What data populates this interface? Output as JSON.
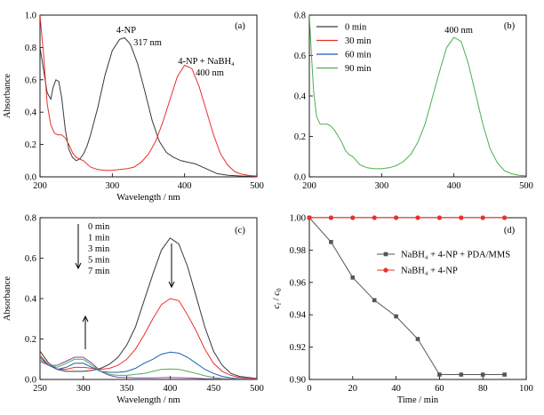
{
  "chart_data": [
    {
      "panel": "(a)",
      "type": "line",
      "xlabel": "Wavelength / nm",
      "ylabel": "Absorbance",
      "xlim": [
        200,
        500
      ],
      "ylim": [
        0,
        1.0
      ],
      "xticks": [
        200,
        300,
        400,
        500
      ],
      "yticks": [
        0.0,
        0.2,
        0.4,
        0.6,
        0.8,
        1.0
      ],
      "annotations": [
        "4-NP",
        "317 nm",
        "4-NP + NaBH₄",
        "400 nm"
      ],
      "series": [
        {
          "color": "#3a3a3a",
          "x": [
            200,
            205,
            210,
            215,
            218,
            222,
            226,
            230,
            235,
            240,
            245,
            250,
            255,
            260,
            265,
            270,
            280,
            290,
            300,
            310,
            317,
            325,
            335,
            345,
            355,
            365,
            375,
            385,
            395,
            405,
            415,
            425,
            435,
            445,
            460,
            480,
            500
          ],
          "y": [
            0.8,
            0.66,
            0.52,
            0.48,
            0.55,
            0.6,
            0.59,
            0.49,
            0.29,
            0.17,
            0.12,
            0.1,
            0.11,
            0.14,
            0.19,
            0.26,
            0.43,
            0.63,
            0.78,
            0.85,
            0.86,
            0.82,
            0.7,
            0.53,
            0.35,
            0.22,
            0.15,
            0.12,
            0.1,
            0.09,
            0.08,
            0.06,
            0.04,
            0.02,
            0.01,
            0.005,
            0.003
          ]
        },
        {
          "color": "#e8312c",
          "x": [
            200,
            205,
            210,
            215,
            220,
            225,
            230,
            235,
            240,
            245,
            250,
            255,
            260,
            270,
            280,
            290,
            300,
            310,
            320,
            330,
            340,
            350,
            360,
            370,
            380,
            390,
            400,
            410,
            420,
            430,
            440,
            450,
            460,
            470,
            480,
            490,
            500
          ],
          "y": [
            1.0,
            0.75,
            0.45,
            0.32,
            0.27,
            0.26,
            0.26,
            0.24,
            0.2,
            0.15,
            0.12,
            0.11,
            0.1,
            0.06,
            0.045,
            0.04,
            0.04,
            0.045,
            0.05,
            0.06,
            0.09,
            0.14,
            0.22,
            0.34,
            0.48,
            0.62,
            0.69,
            0.67,
            0.56,
            0.41,
            0.26,
            0.14,
            0.07,
            0.03,
            0.015,
            0.008,
            0.005
          ]
        }
      ]
    },
    {
      "panel": "(b)",
      "type": "line",
      "xlim": [
        200,
        500
      ],
      "ylim": [
        0,
        0.8
      ],
      "xticks": [
        200,
        300,
        400,
        500
      ],
      "yticks": [
        0.0,
        0.2,
        0.4,
        0.6,
        0.8
      ],
      "annotations": [
        "400 nm"
      ],
      "legend": [
        {
          "name": "0 min",
          "color": "#3a3a3a"
        },
        {
          "name": "30 min",
          "color": "#e8312c"
        },
        {
          "name": "60 min",
          "color": "#1f5fb0"
        },
        {
          "name": "90 min",
          "color": "#4caf50"
        }
      ],
      "series": [
        {
          "color": "#4caf50",
          "x": [
            200,
            203,
            206,
            210,
            215,
            220,
            225,
            230,
            235,
            240,
            245,
            250,
            255,
            260,
            265,
            270,
            280,
            290,
            300,
            310,
            320,
            330,
            340,
            350,
            360,
            370,
            380,
            390,
            400,
            410,
            420,
            430,
            440,
            450,
            460,
            470,
            480,
            490,
            500
          ],
          "y": [
            0.8,
            0.6,
            0.42,
            0.3,
            0.26,
            0.26,
            0.26,
            0.25,
            0.23,
            0.2,
            0.17,
            0.13,
            0.11,
            0.1,
            0.08,
            0.06,
            0.045,
            0.04,
            0.04,
            0.045,
            0.055,
            0.075,
            0.11,
            0.17,
            0.26,
            0.39,
            0.52,
            0.64,
            0.69,
            0.67,
            0.56,
            0.41,
            0.26,
            0.14,
            0.07,
            0.03,
            0.015,
            0.008,
            0.005
          ]
        }
      ]
    },
    {
      "panel": "(c)",
      "type": "line",
      "xlabel": "Wavelength / nm",
      "ylabel": "Absorbance",
      "xlim": [
        250,
        500
      ],
      "ylim": [
        0,
        0.8
      ],
      "xticks": [
        250,
        300,
        350,
        400,
        450,
        500
      ],
      "yticks": [
        0.0,
        0.2,
        0.4,
        0.6,
        0.8
      ],
      "time_labels": [
        "0 min",
        "1 min",
        "3 min",
        "5 min",
        "7 min"
      ],
      "series": [
        {
          "color": "#3a3a3a",
          "x": [
            250,
            260,
            270,
            280,
            290,
            300,
            310,
            320,
            330,
            340,
            350,
            360,
            370,
            380,
            390,
            400,
            410,
            420,
            430,
            440,
            450,
            460,
            470,
            480,
            500
          ],
          "y": [
            0.14,
            0.08,
            0.05,
            0.04,
            0.04,
            0.04,
            0.045,
            0.055,
            0.075,
            0.11,
            0.17,
            0.26,
            0.39,
            0.52,
            0.64,
            0.7,
            0.67,
            0.56,
            0.41,
            0.26,
            0.14,
            0.07,
            0.03,
            0.015,
            0.005
          ]
        },
        {
          "color": "#e8312c",
          "x": [
            250,
            260,
            270,
            280,
            290,
            300,
            310,
            320,
            330,
            340,
            350,
            360,
            370,
            380,
            390,
            400,
            410,
            420,
            430,
            440,
            450,
            460,
            470,
            480,
            500
          ],
          "y": [
            0.12,
            0.07,
            0.05,
            0.05,
            0.06,
            0.06,
            0.055,
            0.05,
            0.055,
            0.07,
            0.1,
            0.15,
            0.22,
            0.3,
            0.37,
            0.4,
            0.39,
            0.32,
            0.24,
            0.15,
            0.08,
            0.04,
            0.02,
            0.01,
            0.005
          ]
        },
        {
          "color": "#1f5fb0",
          "x": [
            250,
            260,
            270,
            280,
            290,
            300,
            310,
            320,
            330,
            340,
            350,
            360,
            370,
            380,
            390,
            400,
            410,
            420,
            430,
            440,
            450,
            460,
            470,
            480,
            500
          ],
          "y": [
            0.11,
            0.07,
            0.05,
            0.06,
            0.08,
            0.08,
            0.06,
            0.04,
            0.035,
            0.035,
            0.04,
            0.055,
            0.08,
            0.1,
            0.125,
            0.135,
            0.13,
            0.11,
            0.08,
            0.05,
            0.03,
            0.015,
            0.008,
            0.004,
            0.002
          ]
        },
        {
          "color": "#4caf50",
          "x": [
            250,
            260,
            270,
            280,
            290,
            300,
            310,
            320,
            330,
            340,
            350,
            360,
            370,
            380,
            390,
            400,
            410,
            420,
            430,
            440,
            450,
            460,
            470,
            480,
            500
          ],
          "y": [
            0.1,
            0.07,
            0.06,
            0.08,
            0.1,
            0.1,
            0.07,
            0.04,
            0.025,
            0.02,
            0.02,
            0.025,
            0.03,
            0.04,
            0.05,
            0.052,
            0.05,
            0.04,
            0.03,
            0.018,
            0.01,
            0.005,
            0.003,
            0.002,
            0.001
          ]
        },
        {
          "color": "#8e44ad",
          "x": [
            250,
            260,
            270,
            280,
            290,
            300,
            310,
            320,
            330,
            340,
            350,
            360,
            370,
            380,
            390,
            400,
            410,
            420,
            430,
            440,
            450,
            460,
            470,
            480,
            500
          ],
          "y": [
            0.09,
            0.07,
            0.07,
            0.09,
            0.11,
            0.11,
            0.08,
            0.04,
            0.02,
            0.01,
            0.01,
            0.008,
            0.008,
            0.008,
            0.009,
            0.01,
            0.009,
            0.008,
            0.006,
            0.004,
            0.003,
            0.002,
            0.001,
            0.001,
            0.001
          ]
        }
      ]
    },
    {
      "panel": "(d)",
      "type": "line",
      "xlabel": "Time / min",
      "ylabel": "ct / c0",
      "xlim": [
        0,
        100
      ],
      "ylim": [
        0.9,
        1.0
      ],
      "xticks": [
        0,
        20,
        40,
        60,
        80,
        100
      ],
      "yticks": [
        0.9,
        0.92,
        0.94,
        0.96,
        0.98,
        1.0
      ],
      "series": [
        {
          "name": "NaBH₄ + 4-NP + PDA/MMS",
          "color": "#555555",
          "marker": "square",
          "x": [
            0,
            10,
            20,
            30,
            40,
            50,
            60,
            70,
            80,
            90
          ],
          "y": [
            1.0,
            0.985,
            0.963,
            0.949,
            0.939,
            0.925,
            0.903,
            0.903,
            0.903,
            0.903
          ]
        },
        {
          "name": "NaBH₄ + 4-NP",
          "color": "#e8312c",
          "marker": "circle",
          "x": [
            0,
            10,
            20,
            30,
            40,
            50,
            60,
            70,
            80,
            90
          ],
          "y": [
            1.0,
            1.0,
            1.0,
            1.0,
            1.0,
            1.0,
            1.0,
            1.0,
            1.0,
            1.0
          ]
        }
      ]
    }
  ]
}
